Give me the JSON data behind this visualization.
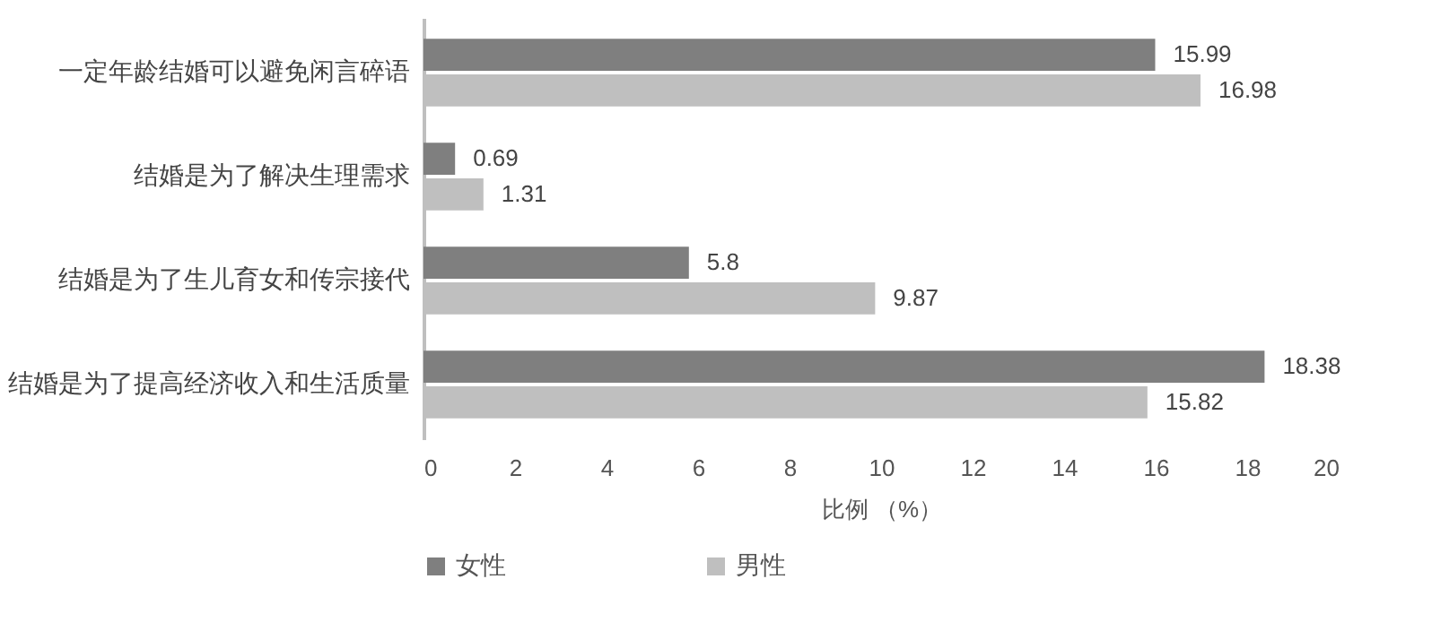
{
  "chart_data": {
    "type": "bar",
    "orientation": "horizontal",
    "xlabel": "比例 （%）",
    "categories": [
      "一定年龄结婚可以避免闲言碎语",
      "结婚是为了解决生理需求",
      "结婚是为了生儿育女和传宗接代",
      "结婚是为了提高经济收入和生活质量"
    ],
    "series": [
      {
        "name": "女性",
        "color": "#7f7f7f",
        "values": [
          15.99,
          0.69,
          5.8,
          18.38
        ]
      },
      {
        "name": "男性",
        "color": "#bfbfbf",
        "values": [
          16.98,
          1.31,
          9.87,
          15.82
        ]
      }
    ],
    "xlim": [
      0,
      20
    ],
    "xticks": [
      0,
      2,
      4,
      6,
      8,
      10,
      12,
      14,
      16,
      18,
      20
    ],
    "data_labels": true,
    "legend": "bottom",
    "grid": false
  }
}
